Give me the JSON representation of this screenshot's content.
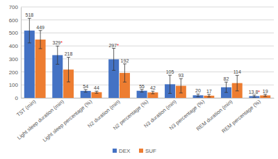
{
  "chart_data": {
    "type": "bar",
    "categories": [
      "TST (min)",
      "Light sleep duration (min)",
      "Light sleep percentage (%)",
      "N2 duration (min)",
      "N2 percentage (%)",
      "N3 duration (min)",
      "N3 percentage (%)",
      "REM duration (min)",
      "REM percentage (%)"
    ],
    "series": [
      {
        "name": "DEX",
        "color": "#4472c4",
        "values": [
          518,
          329,
          54,
          297,
          55,
          105,
          20,
          82,
          13.8
        ],
        "errors": [
          95,
          70,
          10,
          85,
          10,
          70,
          10,
          40,
          8
        ],
        "value_labels": [
          "518",
          "329*",
          "54",
          "297*",
          "55",
          "105",
          "20",
          "82",
          "13.8*"
        ]
      },
      {
        "name": "SUF",
        "color": "#ed7d31",
        "values": [
          449,
          218,
          44,
          192,
          42,
          93,
          17,
          114,
          19
        ],
        "errors": [
          70,
          95,
          8,
          70,
          10,
          55,
          10,
          60,
          8
        ],
        "value_labels": [
          "449",
          "218",
          "44",
          "192",
          "42",
          "93",
          "17",
          "114",
          "19"
        ]
      }
    ],
    "ylim": [
      0,
      700
    ],
    "yticks": [
      0,
      100,
      200,
      300,
      400,
      500,
      600,
      700
    ],
    "grid": true,
    "legend": "bottom",
    "data_labels": true
  }
}
